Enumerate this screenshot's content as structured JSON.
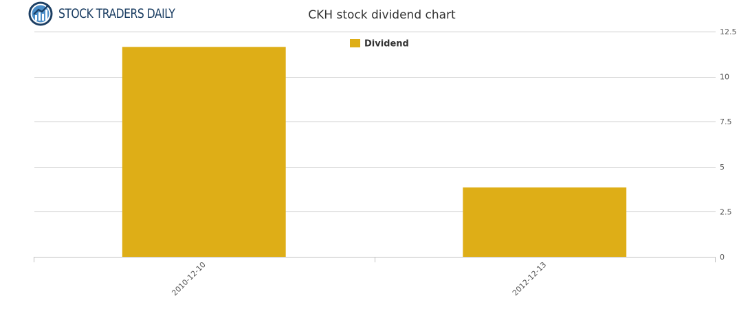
{
  "brand": {
    "name": "STOCK TRADERS DAILY",
    "logo_icon": "chart-globe-icon",
    "primary_color": "#1b3e63",
    "accent_color": "#4a8ec9"
  },
  "chart_data": {
    "type": "bar",
    "title": "CKH stock dividend chart",
    "categories": [
      "2010-12-10",
      "2012-12-13"
    ],
    "series": [
      {
        "name": "Dividend",
        "values": [
          11.65,
          3.85
        ],
        "color": "#deae17"
      }
    ],
    "xlabel": "",
    "ylabel": "",
    "ylim": [
      0,
      12.5
    ],
    "yticks": [
      0,
      2.5,
      5,
      7.5,
      10,
      12.5
    ],
    "ytick_labels": [
      "0",
      "2.5",
      "5",
      "7.5",
      "10",
      "12.5"
    ],
    "y_axis_side": "right",
    "grid": true,
    "legend": "top-center",
    "tick_label_rotation": "-45"
  }
}
